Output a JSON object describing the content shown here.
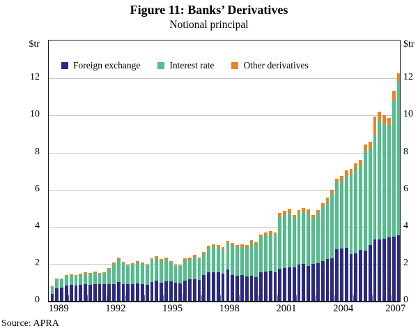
{
  "title": "Figure 11: Banks’ Derivatives",
  "subtitle": "Notional principal",
  "source": "Source: APRA",
  "y_axis": {
    "unit_label": "$tr",
    "ticks": [
      0,
      2,
      4,
      6,
      8,
      10,
      12
    ],
    "sides": [
      "left",
      "right"
    ]
  },
  "x_axis": {
    "year_labels": [
      {
        "label": "1989",
        "center_index": 1.5
      },
      {
        "label": "1992",
        "center_index": 13.5
      },
      {
        "label": "1995",
        "center_index": 25.5
      },
      {
        "label": "1998",
        "center_index": 37.5
      },
      {
        "label": "2001",
        "center_index": 49.5
      },
      {
        "label": "2004",
        "center_index": 61.5
      },
      {
        "label": "2007",
        "center_index": 72.5
      }
    ]
  },
  "legend": [
    {
      "label": "Foreign exchange",
      "color": "#2a2a82"
    },
    {
      "label": "Interest rate",
      "color": "#55bc8d"
    },
    {
      "label": "Other derivatives",
      "color": "#e5842c"
    }
  ],
  "chart_data": {
    "type": "bar",
    "stacked": true,
    "title": "Figure 11: Banks' Derivatives",
    "subtitle": "Notional principal",
    "ylabel": "$tr",
    "ylim": [
      0,
      12
    ],
    "grid": true,
    "legend_position": "top-left-inside",
    "x": [
      "1989 Q1",
      "1989 Q2",
      "1989 Q3",
      "1989 Q4",
      "1990 Q1",
      "1990 Q2",
      "1990 Q3",
      "1990 Q4",
      "1991 Q1",
      "1991 Q2",
      "1991 Q3",
      "1991 Q4",
      "1992 Q1",
      "1992 Q2",
      "1992 Q3",
      "1992 Q4",
      "1993 Q1",
      "1993 Q2",
      "1993 Q3",
      "1993 Q4",
      "1994 Q1",
      "1994 Q2",
      "1994 Q3",
      "1994 Q4",
      "1995 Q1",
      "1995 Q2",
      "1995 Q3",
      "1995 Q4",
      "1996 Q1",
      "1996 Q2",
      "1996 Q3",
      "1996 Q4",
      "1997 Q1",
      "1997 Q2",
      "1997 Q3",
      "1997 Q4",
      "1998 Q1",
      "1998 Q2",
      "1998 Q3",
      "1998 Q4",
      "1999 Q1",
      "1999 Q2",
      "1999 Q3",
      "1999 Q4",
      "2000 Q1",
      "2000 Q2",
      "2000 Q3",
      "2000 Q4",
      "2001 Q1",
      "2001 Q2",
      "2001 Q3",
      "2001 Q4",
      "2002 Q1",
      "2002 Q2",
      "2002 Q3",
      "2002 Q4",
      "2003 Q1",
      "2003 Q2",
      "2003 Q3",
      "2003 Q4",
      "2004 Q1",
      "2004 Q2",
      "2004 Q3",
      "2004 Q4",
      "2005 Q1",
      "2005 Q2",
      "2005 Q3",
      "2005 Q4",
      "2006 Q1",
      "2006 Q2",
      "2006 Q3",
      "2006 Q4",
      "2007 Q1",
      "2007 Q2"
    ],
    "series": [
      {
        "name": "Foreign exchange",
        "color": "#2a2a82",
        "values": [
          0.38,
          0.68,
          0.7,
          0.83,
          0.87,
          0.83,
          0.87,
          0.89,
          0.87,
          0.92,
          0.89,
          0.92,
          0.92,
          0.89,
          1.02,
          0.92,
          0.89,
          0.92,
          0.94,
          0.89,
          0.87,
          1.02,
          1.08,
          0.98,
          1.04,
          1.04,
          0.99,
          0.95,
          1.08,
          1.15,
          1.17,
          1.12,
          1.4,
          1.53,
          1.55,
          1.53,
          1.46,
          1.68,
          1.38,
          1.35,
          1.4,
          1.31,
          1.35,
          1.28,
          1.53,
          1.6,
          1.63,
          1.56,
          1.75,
          1.78,
          1.81,
          1.81,
          1.94,
          2.0,
          1.9,
          2.0,
          2.03,
          2.15,
          2.25,
          2.31,
          2.78,
          2.81,
          2.85,
          2.53,
          2.57,
          2.76,
          2.72,
          3.0,
          3.3,
          3.32,
          3.35,
          3.41,
          3.45,
          3.55
        ]
      },
      {
        "name": "Interest rate",
        "color": "#55bc8d",
        "values": [
          0.37,
          0.49,
          0.46,
          0.5,
          0.51,
          0.5,
          0.54,
          0.58,
          0.57,
          0.61,
          0.55,
          0.57,
          0.78,
          1.08,
          1.23,
          1.1,
          1.05,
          1.05,
          1.12,
          1.09,
          1.04,
          1.18,
          1.24,
          1.18,
          1.21,
          1.02,
          0.95,
          0.92,
          1.11,
          1.08,
          1.19,
          1.13,
          1.12,
          1.33,
          1.37,
          1.37,
          1.3,
          1.43,
          1.62,
          1.55,
          1.53,
          1.56,
          1.8,
          1.74,
          1.88,
          1.94,
          2.0,
          1.98,
          2.78,
          2.85,
          2.95,
          2.66,
          2.76,
          2.82,
          2.86,
          2.48,
          2.69,
          2.93,
          3.11,
          3.44,
          3.57,
          3.67,
          3.88,
          4.3,
          4.53,
          4.54,
          5.38,
          5.2,
          5.6,
          6.48,
          6.25,
          6.04,
          7.4,
          8.3
        ]
      },
      {
        "name": "Other derivatives",
        "color": "#e5842c",
        "values": [
          0.03,
          0.04,
          0.05,
          0.05,
          0.05,
          0.05,
          0.05,
          0.06,
          0.06,
          0.06,
          0.06,
          0.06,
          0.06,
          0.09,
          0.1,
          0.08,
          0.06,
          0.07,
          0.08,
          0.08,
          0.06,
          0.09,
          0.1,
          0.09,
          0.1,
          0.08,
          0.06,
          0.06,
          0.1,
          0.1,
          0.11,
          0.1,
          0.11,
          0.13,
          0.13,
          0.13,
          0.13,
          0.13,
          0.13,
          0.13,
          0.13,
          0.13,
          0.13,
          0.13,
          0.15,
          0.15,
          0.15,
          0.15,
          0.22,
          0.22,
          0.22,
          0.18,
          0.18,
          0.18,
          0.18,
          0.15,
          0.18,
          0.2,
          0.2,
          0.25,
          0.25,
          0.25,
          0.3,
          0.3,
          0.3,
          0.3,
          0.35,
          0.4,
          1.05,
          0.42,
          0.43,
          0.42,
          0.5,
          0.44
        ]
      }
    ]
  }
}
